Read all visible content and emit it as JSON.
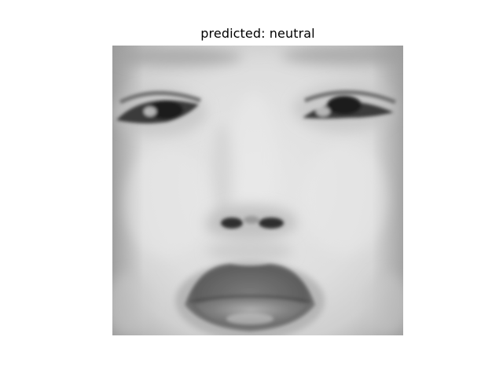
{
  "figure": {
    "title": "predicted: neutral"
  },
  "image": {
    "subject": "grayscale face",
    "predicted_label": "neutral"
  },
  "colors": {
    "background": "#ffffff",
    "skin_light": "#e4e4e4",
    "skin_mid": "#c9c9c9",
    "shadow": "#8f8f8f",
    "dark": "#2a2a2a",
    "lip": "#6a6a6a"
  }
}
